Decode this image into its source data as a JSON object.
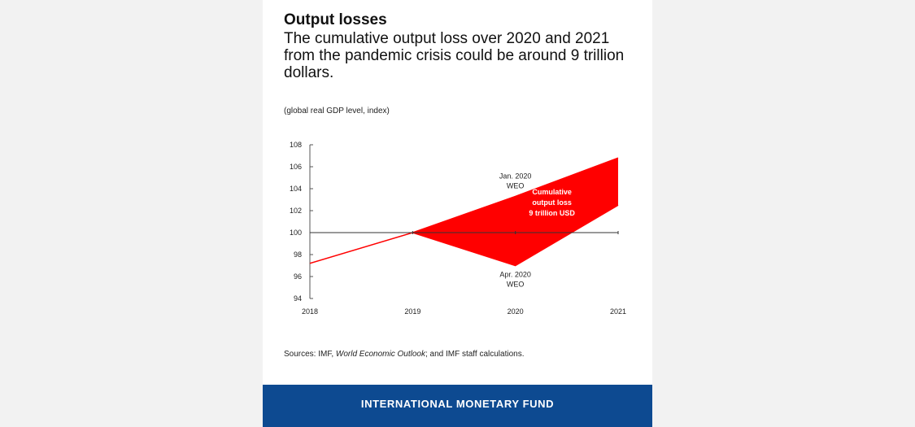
{
  "card": {
    "title": "Output losses",
    "subtitle": "The cumulative output loss over 2020 and 2021 from the pandemic crisis could be around 9 trillion dollars.",
    "units": "(global real GDP level, index)",
    "source_prefix": "Sources: IMF, ",
    "source_italic": "World Economic Outlook",
    "source_suffix": "; and IMF staff calculations.",
    "footer": "INTERNATIONAL MONETARY FUND"
  },
  "colors": {
    "accent": "#ff0000",
    "footer_bg": "#0d4a91"
  },
  "chart_data": {
    "type": "area",
    "categories": [
      "2018",
      "2019",
      "2020",
      "2021"
    ],
    "ylim": [
      94,
      108
    ],
    "yticks": [
      94,
      96,
      98,
      100,
      102,
      104,
      106,
      108
    ],
    "baseline": 100,
    "series": [
      {
        "name": "Jan. 2020 WEO",
        "x": [
          "2019",
          "2020",
          "2021"
        ],
        "values": [
          100,
          103.3,
          106.8
        ]
      },
      {
        "name": "Apr. 2020 WEO",
        "x": [
          "2018",
          "2019",
          "2020",
          "2021"
        ],
        "values": [
          97.2,
          100,
          97.0,
          102.5
        ]
      }
    ],
    "annotations": {
      "jan_label": [
        "Jan. 2020",
        "WEO"
      ],
      "apr_label": [
        "Apr. 2020",
        "WEO"
      ],
      "loss_label": [
        "Cumulative",
        "output loss",
        "9 trillion USD"
      ]
    },
    "grid": false,
    "legend": "none"
  }
}
